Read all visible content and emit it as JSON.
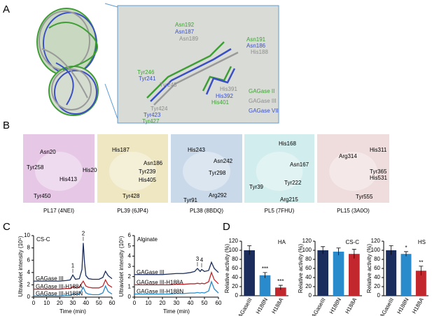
{
  "panel_a": {
    "label": "A",
    "residues": [
      {
        "text": "Asn192",
        "color": "#3f9e35"
      },
      {
        "text": "Asn187",
        "color": "#3b4fc4"
      },
      {
        "text": "Asn189",
        "color": "#8c8c8c"
      },
      {
        "text": "Asn191",
        "color": "#3f9e35"
      },
      {
        "text": "Asn186",
        "color": "#3b4fc4"
      },
      {
        "text": "His188",
        "color": "#8c8c8c"
      },
      {
        "text": "Tyr246",
        "color": "#3f9e35"
      },
      {
        "text": "Tyr241",
        "color": "#3b4fc4"
      },
      {
        "text": "Tyr243",
        "color": "#8c8c8c"
      },
      {
        "text": "His391",
        "color": "#8c8c8c"
      },
      {
        "text": "His392",
        "color": "#3b4fc4"
      },
      {
        "text": "His401",
        "color": "#3f9e35"
      },
      {
        "text": "Tyr424",
        "color": "#8c8c8c"
      },
      {
        "text": "Tyr423",
        "color": "#3b4fc4"
      },
      {
        "text": "Tyr427",
        "color": "#3f9e35"
      }
    ],
    "legend": [
      {
        "text": "GAGase II",
        "color": "#3f9e35"
      },
      {
        "text": "GAGase III",
        "color": "#8c8c8c"
      },
      {
        "text": "GAGase VII",
        "color": "#3b4fc4"
      }
    ]
  },
  "panel_b": {
    "label": "B",
    "panels": [
      {
        "caption": "PL17 (4NEI)",
        "background": "#e6c8e6",
        "residues": [
          "Asn20",
          "Tyr258",
          "His200",
          "His413",
          "Tyr450"
        ]
      },
      {
        "caption": "PL39 (6JP4)",
        "background": "#efe6c2",
        "residues": [
          "His187",
          "Asn186",
          "Tyr239",
          "His405",
          "Tyr428"
        ]
      },
      {
        "caption": "PL38 (8BDQ)",
        "background": "#c9d9e9",
        "residues": [
          "His243",
          "Asn242",
          "Tyr298",
          "Arg292",
          "Tyr91"
        ]
      },
      {
        "caption": "PL5 (7FHU)",
        "background": "#d2eded",
        "residues": [
          "His168",
          "Asn167",
          "Tyr39",
          "Tyr222",
          "Arg215"
        ]
      },
      {
        "caption": "PL15 (3A0O)",
        "background": "#efdcdc",
        "residues": [
          "Arg314",
          "His311",
          "Tyr365",
          "His531",
          "Tyr555"
        ]
      }
    ]
  },
  "panel_c_label": "C",
  "panel_d_label": "D",
  "chart_data": [
    {
      "type": "line",
      "title": "CS-C",
      "xlabel": "Time (min)",
      "ylabel": "Ultraviolet intensity (10⁵)",
      "x": [
        0,
        5,
        10,
        15,
        20,
        25,
        28,
        30,
        32,
        35,
        37,
        38,
        39,
        40,
        42,
        45,
        50,
        53,
        55,
        57,
        60
      ],
      "xlim": [
        0,
        60
      ],
      "xticks": [
        0,
        10,
        20,
        30,
        40,
        50,
        60
      ],
      "ylim": [
        0,
        10
      ],
      "yticks": [
        0,
        2,
        4,
        6,
        8,
        10
      ],
      "series": [
        {
          "name": "GAGase III",
          "color": "#1b2d5c",
          "values": [
            2.6,
            2.6,
            2.6,
            2.6,
            2.6,
            2.7,
            2.8,
            3.6,
            2.9,
            3.0,
            4.5,
            8.8,
            5.5,
            3.5,
            3.0,
            2.9,
            2.9,
            3.2,
            4.2,
            3.5,
            3.0
          ]
        },
        {
          "name": "GAGase III-H188A",
          "color": "#c1272d",
          "values": [
            1.3,
            1.3,
            1.3,
            1.3,
            1.3,
            1.4,
            1.4,
            1.7,
            1.5,
            1.6,
            2.3,
            2.6,
            2.2,
            1.8,
            1.6,
            1.5,
            1.5,
            1.8,
            2.8,
            2.0,
            1.6
          ]
        },
        {
          "name": "GAGase III-H188N",
          "color": "#2a8bcc",
          "values": [
            0.2,
            0.2,
            0.2,
            0.2,
            0.2,
            0.3,
            0.3,
            0.5,
            0.4,
            0.5,
            1.2,
            1.6,
            1.1,
            0.7,
            0.5,
            0.4,
            0.4,
            0.7,
            1.8,
            0.9,
            0.5
          ]
        }
      ],
      "annotations": [
        {
          "text": "1",
          "x": 30
        },
        {
          "text": "2",
          "x": 38
        }
      ]
    },
    {
      "type": "line",
      "title": "Alginate",
      "xlabel": "Time (min)",
      "ylabel": "Ultraviolet intensity (10⁵)",
      "x": [
        0,
        5,
        10,
        15,
        20,
        25,
        30,
        35,
        40,
        43,
        45,
        47,
        48,
        50,
        53,
        55,
        57,
        60
      ],
      "xlim": [
        0,
        60
      ],
      "xticks": [
        0,
        10,
        20,
        30,
        40,
        50,
        60
      ],
      "ylim": [
        0,
        6
      ],
      "yticks": [
        0,
        1,
        2,
        3,
        4,
        5,
        6
      ],
      "series": [
        {
          "name": "GAGase III",
          "color": "#1b2d5c",
          "values": [
            2.2,
            2.2,
            2.2,
            2.2,
            2.2,
            2.25,
            2.3,
            2.3,
            2.4,
            2.5,
            2.8,
            2.5,
            2.7,
            2.5,
            2.6,
            3.4,
            2.8,
            2.4
          ]
        },
        {
          "name": "GAGase III-H188A",
          "color": "#c1272d",
          "values": [
            1.2,
            1.2,
            1.2,
            1.2,
            1.2,
            1.2,
            1.25,
            1.25,
            1.3,
            1.3,
            1.35,
            1.3,
            1.35,
            1.3,
            1.5,
            2.4,
            1.7,
            1.3
          ]
        },
        {
          "name": "GAGase III-H188N",
          "color": "#2a8bcc",
          "values": [
            0.3,
            0.3,
            0.3,
            0.3,
            0.3,
            0.3,
            0.35,
            0.35,
            0.4,
            0.4,
            0.45,
            0.4,
            0.45,
            0.4,
            0.6,
            1.5,
            0.8,
            0.4
          ]
        }
      ],
      "annotations": [
        {
          "text": "3",
          "x": 45
        },
        {
          "text": "4",
          "x": 48
        }
      ]
    },
    {
      "type": "bar",
      "title": "HA",
      "ylabel": "Relative activity (%)",
      "categories": [
        "GAGaseIII",
        "H188N",
        "H188A"
      ],
      "values": [
        100,
        45,
        18
      ],
      "errors": [
        10,
        6,
        5
      ],
      "colors": [
        "#1b2d5c",
        "#2a8bcc",
        "#c1272d"
      ],
      "annotations": [
        null,
        "***",
        "***"
      ],
      "ylim": [
        0,
        120
      ],
      "yticks": [
        0,
        20,
        40,
        60,
        80,
        100,
        120
      ]
    },
    {
      "type": "bar",
      "title": "CS-C",
      "ylabel": "Relative activity (%)",
      "categories": [
        "GAGaseIII",
        "H188N",
        "H188A"
      ],
      "values": [
        100,
        97,
        92
      ],
      "errors": [
        8,
        8,
        10
      ],
      "colors": [
        "#1b2d5c",
        "#2a8bcc",
        "#c1272d"
      ],
      "ylim": [
        0,
        120
      ],
      "yticks": [
        0,
        20,
        40,
        60,
        80,
        100,
        120
      ]
    },
    {
      "type": "bar",
      "title": "HS",
      "ylabel": "Relative activity (%)",
      "categories": [
        "GAGaseIII",
        "H188N",
        "H188A"
      ],
      "values": [
        100,
        92,
        55
      ],
      "errors": [
        10,
        5,
        10
      ],
      "colors": [
        "#1b2d5c",
        "#2a8bcc",
        "#c1272d"
      ],
      "annotations": [
        null,
        "*",
        "**"
      ],
      "ylim": [
        0,
        120
      ],
      "yticks": [
        0,
        20,
        40,
        60,
        80,
        100,
        120
      ]
    }
  ]
}
